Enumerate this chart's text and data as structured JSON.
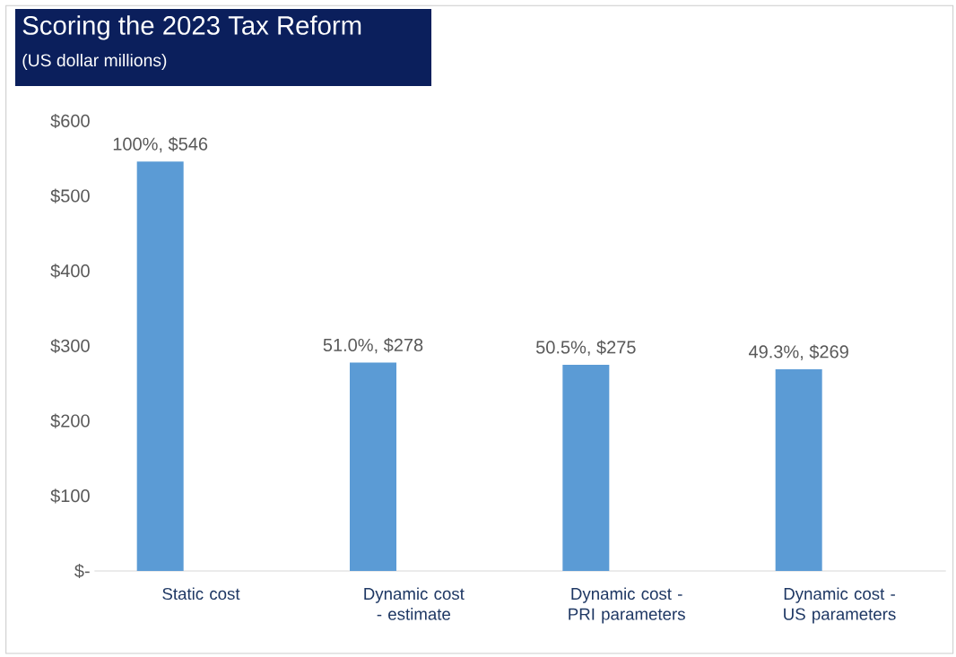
{
  "chart_data": {
    "type": "bar",
    "title": "Scoring the 2023 Tax Reform",
    "subtitle": "(US dollar millions)",
    "categories": [
      "Static cost",
      "Dynamic cost - estimate",
      "Dynamic cost - PRI parameters",
      "Dynamic cost - US parameters"
    ],
    "values": [
      546,
      278,
      275,
      269
    ],
    "value_labels": [
      "100%, $546",
      "51.0%, $278",
      "50.5%, $275",
      "49.3%, $269"
    ],
    "color": "#5b9bd5",
    "ylim": [
      0,
      600
    ],
    "yticks": [
      {
        "value": 0,
        "label": "$-"
      },
      {
        "value": 100,
        "label": "$100"
      },
      {
        "value": 200,
        "label": "$200"
      },
      {
        "value": 300,
        "label": "$300"
      },
      {
        "value": 400,
        "label": "$400"
      },
      {
        "value": 500,
        "label": "$500"
      },
      {
        "value": 600,
        "label": "$600"
      }
    ],
    "data_labels": false
  }
}
